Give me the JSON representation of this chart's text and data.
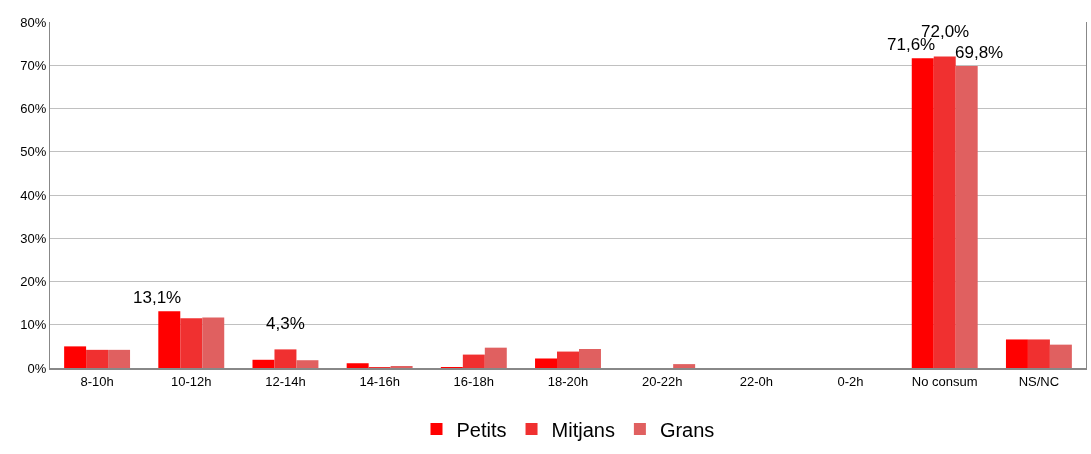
{
  "chart_data": {
    "type": "bar",
    "categories": [
      "8-10h",
      "10-12h",
      "12-14h",
      "14-16h",
      "16-18h",
      "18-20h",
      "20-22h",
      "22-0h",
      "0-2h",
      "No consum",
      "NS/NC"
    ],
    "series": [
      {
        "name": "Petits",
        "color": "#ff0000",
        "values": [
          5.0,
          13.1,
          1.9,
          1.1,
          0.2,
          2.2,
          0,
          0,
          0,
          71.6,
          6.6
        ],
        "value_labels": [
          null,
          "13,1%",
          null,
          null,
          null,
          null,
          null,
          null,
          null,
          "71,6%",
          null
        ]
      },
      {
        "name": "Mitjans",
        "color": "#f03030",
        "values": [
          4.2,
          11.5,
          4.3,
          0.2,
          3.1,
          3.8,
          0,
          0,
          0,
          72.0,
          6.6
        ],
        "value_labels": [
          null,
          null,
          "4,3%",
          null,
          null,
          null,
          null,
          null,
          null,
          "72,0%",
          null
        ]
      },
      {
        "name": "Grans",
        "color": "#e06060",
        "values": [
          4.2,
          11.7,
          1.8,
          0.4,
          4.7,
          4.4,
          0.9,
          0,
          0,
          69.8,
          5.4
        ],
        "value_labels": [
          null,
          null,
          null,
          null,
          null,
          null,
          null,
          null,
          null,
          "69,8%",
          null
        ]
      }
    ],
    "ylim": [
      0,
      80
    ],
    "yticks": [
      {
        "value": 0,
        "label": "0%"
      },
      {
        "value": 10,
        "label": "10%"
      },
      {
        "value": 20,
        "label": "20%"
      },
      {
        "value": 30,
        "label": "30%"
      },
      {
        "value": 40,
        "label": "40%"
      },
      {
        "value": 50,
        "label": "50%"
      },
      {
        "value": 60,
        "label": "60%"
      },
      {
        "value": 70,
        "label": "70%"
      },
      {
        "value": 80,
        "label": "80%"
      }
    ],
    "grid": "y",
    "legend": "bottom"
  }
}
